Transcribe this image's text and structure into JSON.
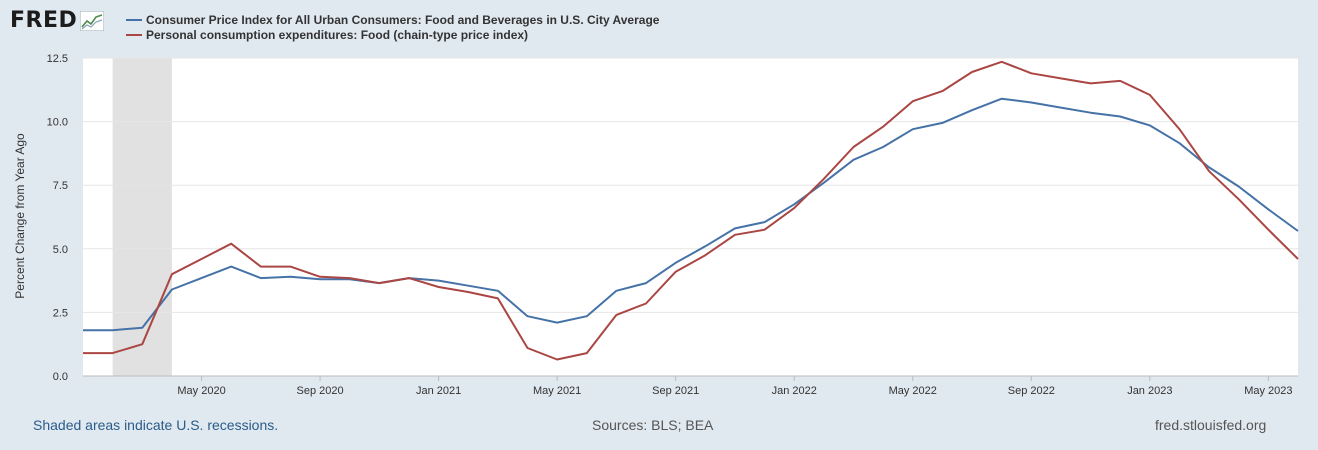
{
  "logo": {
    "text": "FRED"
  },
  "legend": [
    {
      "label": "Consumer Price Index for All Urban Consumers: Food and Beverages in U.S. City Average",
      "color": "#4572a7"
    },
    {
      "label": "Personal consumption expenditures: Food (chain-type price index)",
      "color": "#aa4643"
    }
  ],
  "chart_data": {
    "type": "line",
    "ylabel": "Percent Change from Year Ago",
    "ylim": [
      0,
      12.5
    ],
    "yticks": [
      "0.0",
      "2.5",
      "5.0",
      "7.5",
      "10.0",
      "12.5"
    ],
    "xticks": [
      "May 2020",
      "Sep 2020",
      "Jan 2021",
      "May 2021",
      "Sep 2021",
      "Jan 2022",
      "May 2022",
      "Sep 2022",
      "Jan 2023",
      "May 2023"
    ],
    "x": [
      "2020-01",
      "2020-02",
      "2020-03",
      "2020-04",
      "2020-05",
      "2020-06",
      "2020-07",
      "2020-08",
      "2020-09",
      "2020-10",
      "2020-11",
      "2020-12",
      "2021-01",
      "2021-02",
      "2021-03",
      "2021-04",
      "2021-05",
      "2021-06",
      "2021-07",
      "2021-08",
      "2021-09",
      "2021-10",
      "2021-11",
      "2021-12",
      "2022-01",
      "2022-02",
      "2022-03",
      "2022-04",
      "2022-05",
      "2022-06",
      "2022-07",
      "2022-08",
      "2022-09",
      "2022-10",
      "2022-11",
      "2022-12",
      "2023-01",
      "2023-02",
      "2023-03",
      "2023-04",
      "2023-05",
      "2023-06"
    ],
    "recession": {
      "start": "2020-02",
      "end": "2020-04"
    },
    "series": [
      {
        "name": "Consumer Price Index for All Urban Consumers: Food and Beverages in U.S. City Average",
        "color": "#4572a7",
        "values": [
          1.8,
          1.8,
          1.9,
          3.4,
          3.85,
          4.3,
          3.85,
          3.9,
          3.8,
          3.8,
          3.65,
          3.85,
          3.75,
          3.55,
          3.35,
          2.35,
          2.1,
          2.35,
          3.35,
          3.65,
          4.45,
          5.1,
          5.8,
          6.05,
          6.75,
          7.6,
          8.5,
          9.0,
          9.7,
          9.95,
          10.45,
          10.9,
          10.75,
          10.55,
          10.35,
          10.2,
          9.85,
          9.15,
          8.2,
          7.45,
          6.55,
          5.7
        ]
      },
      {
        "name": "Personal consumption expenditures: Food (chain-type price index)",
        "color": "#aa4643",
        "values": [
          0.9,
          0.9,
          1.25,
          4.0,
          4.6,
          5.2,
          4.3,
          4.3,
          3.9,
          3.85,
          3.65,
          3.85,
          3.5,
          3.3,
          3.05,
          1.1,
          0.65,
          0.9,
          2.4,
          2.85,
          4.1,
          4.75,
          5.55,
          5.75,
          6.6,
          7.75,
          9.0,
          9.8,
          10.8,
          11.2,
          11.95,
          12.35,
          11.9,
          11.7,
          11.5,
          11.6,
          11.05,
          9.7,
          8.05,
          6.95,
          5.75,
          4.6
        ]
      }
    ]
  },
  "footer": {
    "recession_note": "Shaded areas indicate U.S. recessions.",
    "sources": "Sources: BLS; BEA",
    "site": "fred.stlouisfed.org"
  }
}
